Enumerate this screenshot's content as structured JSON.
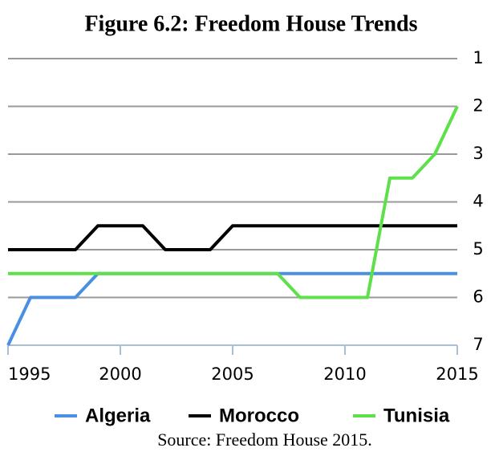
{
  "chart_data": {
    "type": "line",
    "title": "Figure 6.2: Freedom House Trends",
    "source": "Source: Freedom House 2015.",
    "x": [
      1995,
      1996,
      1997,
      1998,
      1999,
      2000,
      2001,
      2002,
      2003,
      2004,
      2005,
      2006,
      2007,
      2008,
      2009,
      2010,
      2011,
      2012,
      2013,
      2014,
      2015
    ],
    "xlim": [
      1995,
      2015
    ],
    "xticks": [
      1995,
      2000,
      2005,
      2010,
      2015
    ],
    "ylim": [
      7,
      1
    ],
    "yticks": [
      1,
      2,
      3,
      4,
      5,
      6,
      7
    ],
    "grid": true,
    "series": [
      {
        "name": "Algeria",
        "color": "#4a90e2",
        "values": [
          7,
          6,
          6,
          6,
          5.5,
          5.5,
          5.5,
          5.5,
          5.5,
          5.5,
          5.5,
          5.5,
          5.5,
          5.5,
          5.5,
          5.5,
          5.5,
          5.5,
          5.5,
          5.5,
          5.5
        ]
      },
      {
        "name": "Morocco",
        "color": "#000000",
        "values": [
          5,
          5,
          5,
          5,
          4.5,
          4.5,
          4.5,
          5,
          5,
          5,
          4.5,
          4.5,
          4.5,
          4.5,
          4.5,
          4.5,
          4.5,
          4.5,
          4.5,
          4.5,
          4.5
        ]
      },
      {
        "name": "Tunisia",
        "color": "#5ee04a",
        "values": [
          5.5,
          5.5,
          5.5,
          5.5,
          5.5,
          5.5,
          5.5,
          5.5,
          5.5,
          5.5,
          5.5,
          5.5,
          5.5,
          6,
          6,
          6,
          6,
          3.5,
          3.5,
          3,
          2
        ]
      }
    ]
  }
}
